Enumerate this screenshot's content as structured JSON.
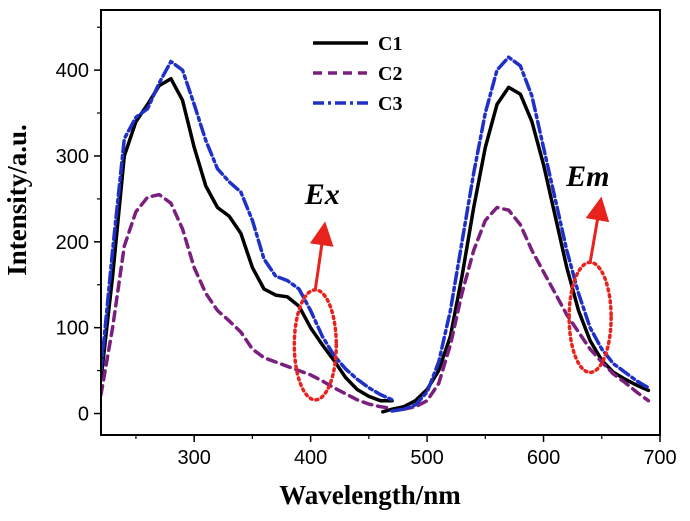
{
  "chart_data": {
    "type": "line",
    "title": "",
    "xlabel": "Wavelength/nm",
    "ylabel": "Intensity/a.u.",
    "xlim": [
      220,
      700
    ],
    "ylim": [
      -25,
      470
    ],
    "xticks": [
      300,
      400,
      500,
      600,
      700
    ],
    "yticks": [
      0,
      100,
      200,
      300,
      400
    ],
    "grid": false,
    "legend_position": "top-center",
    "series": [
      {
        "name": "C1",
        "color": "#000000",
        "dash": "solid",
        "segments": [
          [
            [
              220,
              40
            ],
            [
              230,
              160
            ],
            [
              240,
              300
            ],
            [
              250,
              340
            ],
            [
              260,
              360
            ],
            [
              270,
              382
            ],
            [
              280,
              390
            ],
            [
              290,
              365
            ],
            [
              300,
              310
            ],
            [
              310,
              265
            ],
            [
              320,
              240
            ],
            [
              330,
              230
            ],
            [
              340,
              210
            ],
            [
              350,
              170
            ],
            [
              360,
              145
            ],
            [
              370,
              138
            ],
            [
              380,
              136
            ],
            [
              390,
              125
            ],
            [
              400,
              100
            ],
            [
              410,
              80
            ],
            [
              420,
              62
            ],
            [
              430,
              42
            ],
            [
              440,
              28
            ],
            [
              450,
              20
            ],
            [
              460,
              15
            ],
            [
              470,
              15
            ]
          ],
          [
            [
              462,
              2
            ],
            [
              470,
              5
            ],
            [
              480,
              8
            ],
            [
              490,
              15
            ],
            [
              500,
              28
            ],
            [
              510,
              50
            ],
            [
              520,
              90
            ],
            [
              530,
              160
            ],
            [
              540,
              240
            ],
            [
              550,
              310
            ],
            [
              560,
              360
            ],
            [
              570,
              380
            ],
            [
              580,
              372
            ],
            [
              590,
              340
            ],
            [
              600,
              290
            ],
            [
              610,
              230
            ],
            [
              620,
              170
            ],
            [
              630,
              120
            ],
            [
              640,
              85
            ],
            [
              650,
              62
            ],
            [
              660,
              48
            ],
            [
              670,
              40
            ],
            [
              680,
              33
            ],
            [
              690,
              27
            ]
          ]
        ]
      },
      {
        "name": "C2",
        "color": "#7b1f7f",
        "dash": "dashed",
        "segments": [
          [
            [
              220,
              22
            ],
            [
              230,
              100
            ],
            [
              240,
              195
            ],
            [
              250,
              235
            ],
            [
              260,
              252
            ],
            [
              270,
              255
            ],
            [
              280,
              245
            ],
            [
              290,
              215
            ],
            [
              300,
              170
            ],
            [
              310,
              140
            ],
            [
              320,
              120
            ],
            [
              330,
              108
            ],
            [
              340,
              95
            ],
            [
              350,
              75
            ],
            [
              360,
              65
            ],
            [
              370,
              60
            ],
            [
              380,
              55
            ],
            [
              390,
              50
            ],
            [
              400,
              45
            ],
            [
              410,
              38
            ],
            [
              420,
              30
            ],
            [
              430,
              23
            ],
            [
              440,
              16
            ],
            [
              450,
              11
            ],
            [
              460,
              8
            ],
            [
              470,
              6
            ]
          ],
          [
            [
              480,
              5
            ],
            [
              490,
              8
            ],
            [
              500,
              15
            ],
            [
              510,
              35
            ],
            [
              520,
              80
            ],
            [
              530,
              140
            ],
            [
              540,
              190
            ],
            [
              550,
              225
            ],
            [
              560,
              240
            ],
            [
              570,
              237
            ],
            [
              580,
              220
            ],
            [
              590,
              190
            ],
            [
              600,
              165
            ],
            [
              610,
              140
            ],
            [
              620,
              115
            ],
            [
              630,
              95
            ],
            [
              640,
              75
            ],
            [
              650,
              60
            ],
            [
              660,
              46
            ],
            [
              670,
              36
            ],
            [
              680,
              25
            ],
            [
              690,
              15
            ]
          ]
        ]
      },
      {
        "name": "C3",
        "color": "#1f30c8",
        "dash": "dashdot",
        "segments": [
          [
            [
              220,
              50
            ],
            [
              230,
              190
            ],
            [
              240,
              320
            ],
            [
              250,
              345
            ],
            [
              260,
              355
            ],
            [
              270,
              385
            ],
            [
              280,
              410
            ],
            [
              290,
              400
            ],
            [
              300,
              360
            ],
            [
              310,
              318
            ],
            [
              320,
              285
            ],
            [
              330,
              270
            ],
            [
              340,
              258
            ],
            [
              350,
              225
            ],
            [
              360,
              180
            ],
            [
              370,
              160
            ],
            [
              380,
              155
            ],
            [
              390,
              145
            ],
            [
              400,
              120
            ],
            [
              410,
              90
            ],
            [
              420,
              68
            ],
            [
              430,
              52
            ],
            [
              440,
              40
            ],
            [
              450,
              30
            ],
            [
              460,
              22
            ],
            [
              470,
              16
            ]
          ],
          [
            [
              470,
              3
            ],
            [
              480,
              5
            ],
            [
              490,
              10
            ],
            [
              500,
              25
            ],
            [
              510,
              60
            ],
            [
              520,
              120
            ],
            [
              530,
              200
            ],
            [
              540,
              280
            ],
            [
              550,
              350
            ],
            [
              560,
              400
            ],
            [
              570,
              415
            ],
            [
              580,
              405
            ],
            [
              590,
              370
            ],
            [
              600,
              310
            ],
            [
              610,
              250
            ],
            [
              620,
              190
            ],
            [
              630,
              140
            ],
            [
              640,
              100
            ],
            [
              650,
              75
            ],
            [
              660,
              58
            ],
            [
              670,
              48
            ],
            [
              680,
              38
            ],
            [
              690,
              30
            ]
          ]
        ]
      }
    ],
    "annotations": [
      {
        "text": "Ex",
        "label_at": [
          410,
          244
        ],
        "ellipse_center": [
          404,
          80
        ],
        "arrow_to": [
          411,
          210
        ]
      },
      {
        "text": "Em",
        "label_at": [
          638,
          265
        ],
        "ellipse_center": [
          640,
          112
        ],
        "arrow_to": [
          648,
          239
        ]
      }
    ]
  }
}
